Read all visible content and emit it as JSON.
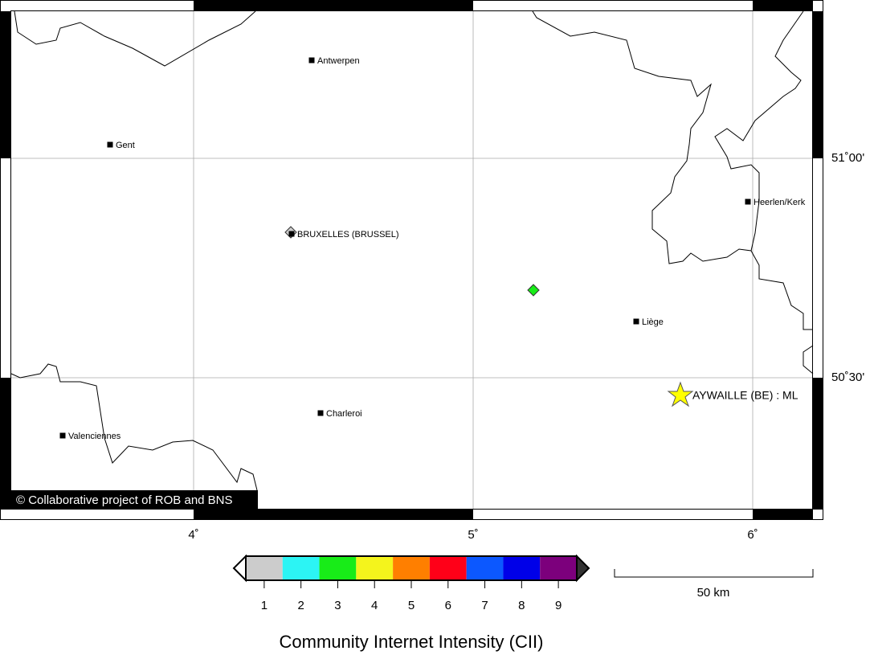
{
  "map": {
    "lon_labels": [
      "4˚",
      "5˚",
      "6˚"
    ],
    "lat_labels": [
      "51˚00'",
      "50˚30'"
    ],
    "cities": [
      "Antwerpen",
      "Gent",
      "BRUXELLES (BRUSSEL)",
      "Heerlen/Kerk",
      "Liège",
      "Charleroi",
      "Valenciennes"
    ],
    "epicenter_label": "AYWAILLE (BE) : ML",
    "points": [
      {
        "intensity": 3
      },
      {
        "intensity": 1
      }
    ],
    "credit": "© Collaborative project of ROB and BNS"
  },
  "legend": {
    "title": "Community Internet Intensity (CII)",
    "ticks": [
      1,
      2,
      3,
      4,
      5,
      6,
      7,
      8,
      9
    ],
    "colors": [
      "#cccccc",
      "#2cf4f4",
      "#18ec18",
      "#f4f41c",
      "#ff7f00",
      "#ff0018",
      "#0c58ff",
      "#0000e8",
      "#7c007c"
    ]
  },
  "scale_bar": "50 km"
}
